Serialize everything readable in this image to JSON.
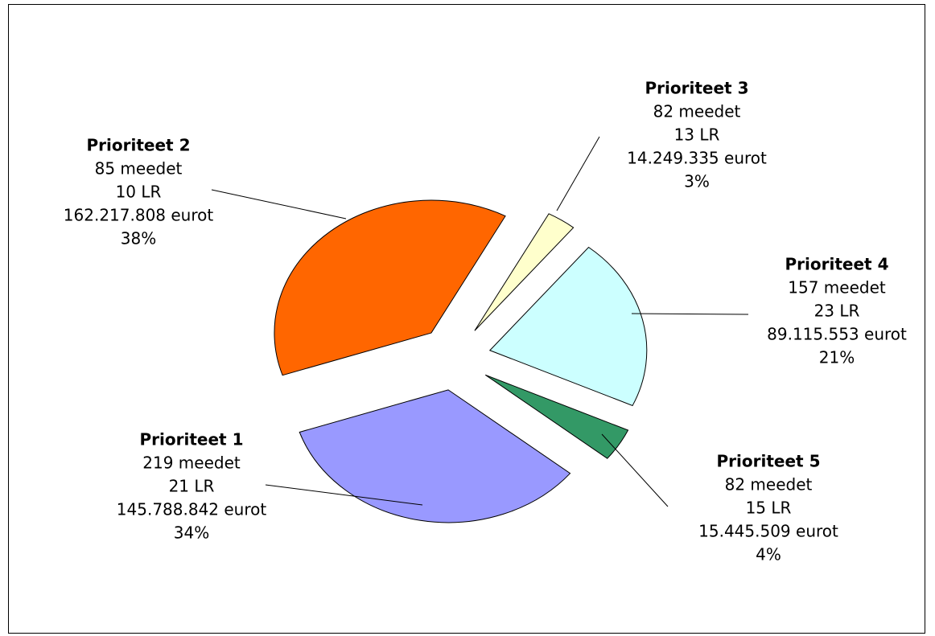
{
  "chart_data": {
    "type": "pie",
    "categories": [
      "Prioriteet 1",
      "Prioriteet 2",
      "Prioriteet 3",
      "Prioriteet 4",
      "Prioriteet 5"
    ],
    "details": [
      [
        "219 meedet",
        "21 LR",
        "145.788.842 eurot"
      ],
      [
        "85 meedet",
        "10 LR",
        "162.217.808 eurot"
      ],
      [
        "82 meedet",
        "13 LR",
        "14.249.335 eurot"
      ],
      [
        "157 meedet",
        "23 LR",
        "89.115.553 eurot"
      ],
      [
        "82 meedet",
        "15 LR",
        "15.445.509 eurot"
      ]
    ],
    "values": [
      34,
      38,
      3,
      21,
      4
    ],
    "value_labels": [
      "34%",
      "38%",
      "3%",
      "21%",
      "4%"
    ],
    "colors": [
      "#9999ff",
      "#ff6600",
      "#ffffcc",
      "#ccffff",
      "#339966"
    ]
  }
}
